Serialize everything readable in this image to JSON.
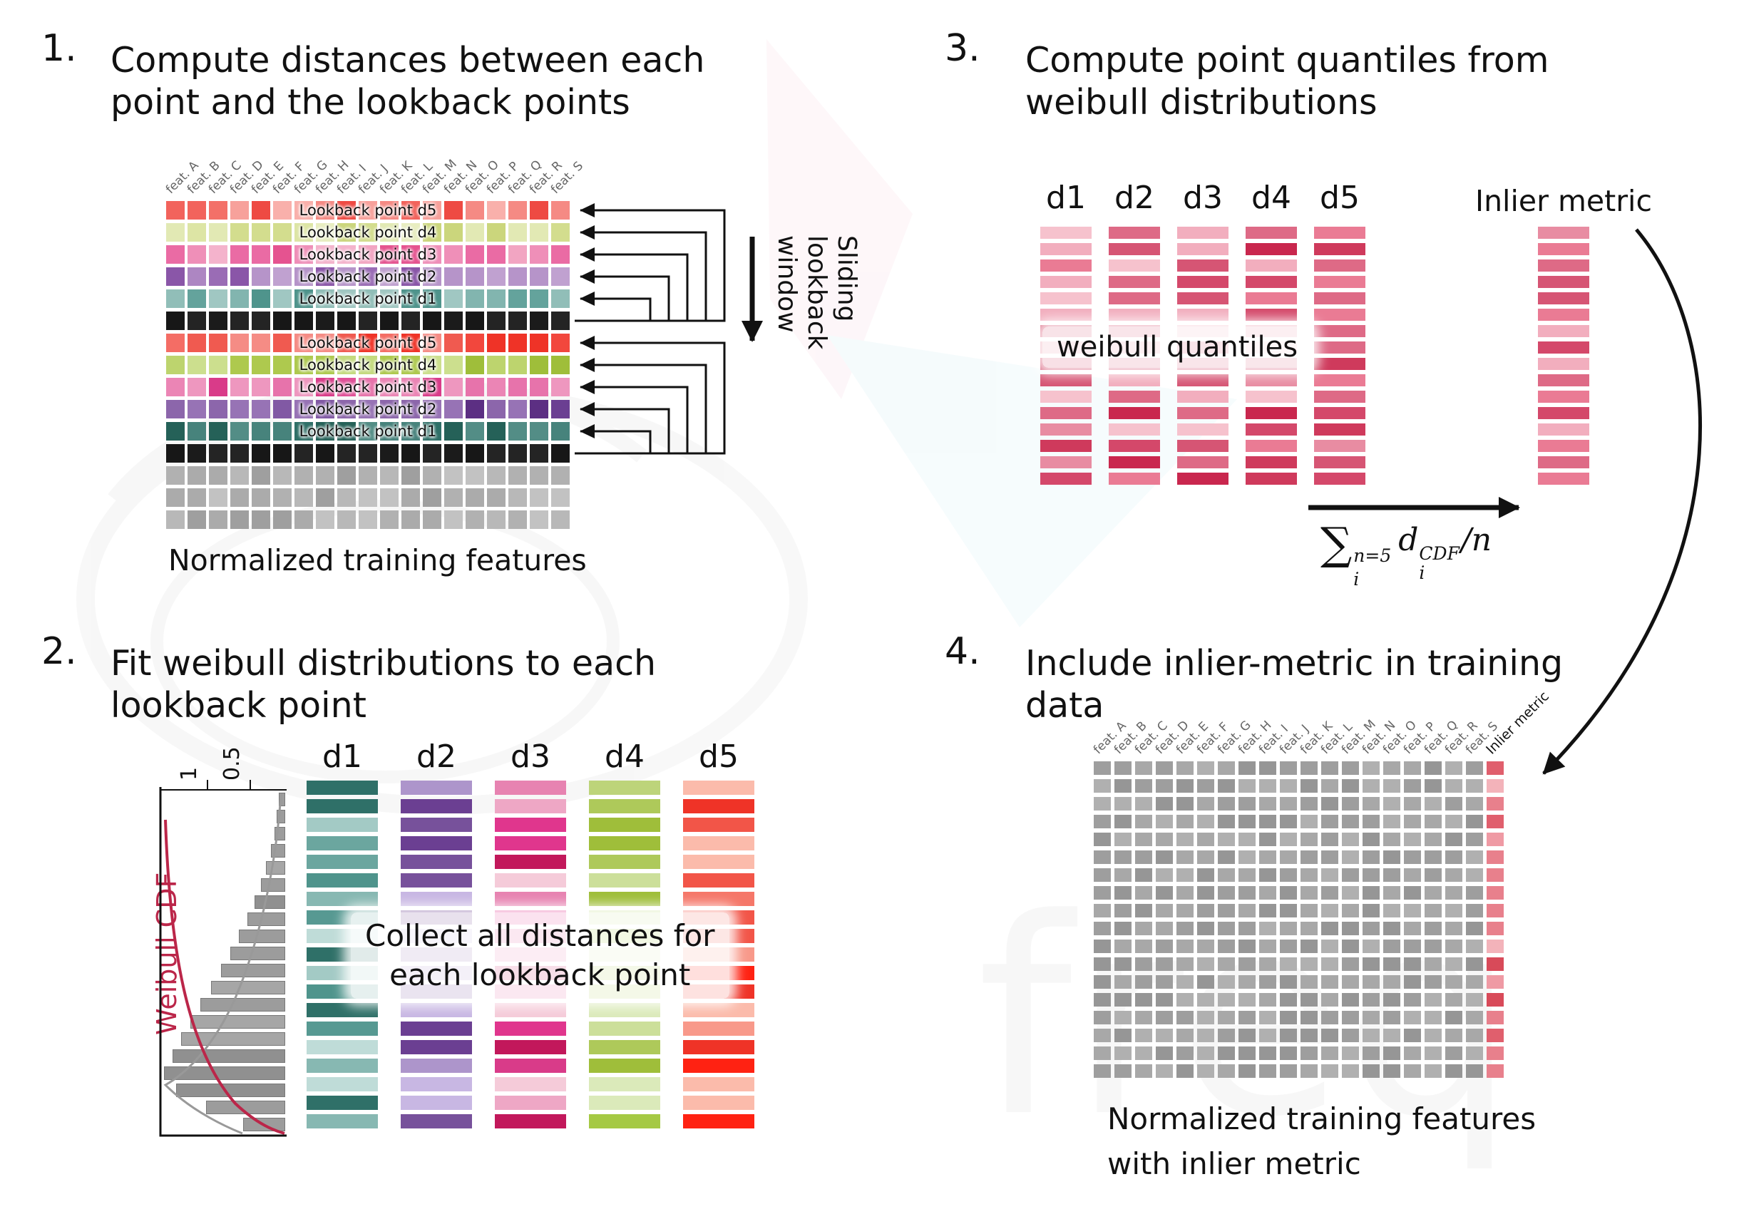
{
  "colors": {
    "ink": "#111111",
    "cdf_red": "#bb2649",
    "palettes": {
      "salmon": [
        "#f2635c",
        "#f58a84",
        "#f9b0ab",
        "#ee4a43",
        "#f7a19b",
        "#f37068"
      ],
      "paleGreen": [
        "#d3dd8e",
        "#dde5a5",
        "#e8edc0",
        "#cbd67c",
        "#e2e9b4"
      ],
      "pinkRow": [
        "#ea6ba4",
        "#ef8fb8",
        "#f4b3cc",
        "#e55390",
        "#f2a5c2"
      ],
      "purpleRow": [
        "#9a6cb5",
        "#ad86c2",
        "#c0a1d0",
        "#8a56a8",
        "#b694c9"
      ],
      "tealRow": [
        "#64a39c",
        "#82b5af",
        "#a0c7c2",
        "#4f948c",
        "#91beb8"
      ],
      "blackRow": [
        "#1b1b1b",
        "#242424",
        "#171717"
      ],
      "red2": [
        "#f2473d",
        "#f46d65",
        "#ef3327",
        "#f58c85",
        "#f05a50"
      ],
      "green2": [
        "#aec94e",
        "#bdd46e",
        "#ccdf8e",
        "#9fbe3a",
        "#c4da7e"
      ],
      "magenta2": [
        "#e04f97",
        "#e773ab",
        "#ee97bf",
        "#d93b89",
        "#eb85b5"
      ],
      "purple2": [
        "#6b3f92",
        "#8159a4",
        "#9773b5",
        "#5c2f83",
        "#8c66ab"
      ],
      "teal2": [
        "#2f7068",
        "#47837c",
        "#5f9690",
        "#256158",
        "#538d86"
      ],
      "grayRow": [
        "#ababab",
        "#b8b8b8",
        "#9f9f9f",
        "#c2c2c2",
        "#b1b1b1"
      ],
      "quantile": [
        "#c9274e",
        "#d4486a",
        "#de6a86",
        "#e88ca2",
        "#f2aebe",
        "#ea7b94",
        "#d65574",
        "#f6c2cd",
        "#cf3a5c"
      ],
      "inlierCol": [
        "#d4486a",
        "#de6a86",
        "#e88ca2",
        "#ea7b94",
        "#d65574",
        "#f2aebe"
      ],
      "tealCol": [
        "#2f7068",
        "#4f948c",
        "#6ba69f",
        "#87b8b2",
        "#a3cac5",
        "#bfdcd8",
        "#579992"
      ],
      "purpleCol": [
        "#5c2f83",
        "#77519b",
        "#9273b3",
        "#ad95cb",
        "#c8b7e3",
        "#6b3f92"
      ],
      "pinkCol": [
        "#d93b89",
        "#e05f9d",
        "#e783b1",
        "#eea7c5",
        "#f5cbd9",
        "#c2185b",
        "#e0368d"
      ],
      "greenCol": [
        "#9fbe3a",
        "#aec95a",
        "#bdd47a",
        "#ccdf9a",
        "#dbeaba",
        "#a5c944"
      ],
      "redCol": [
        "#ef3327",
        "#f25548",
        "#f57769",
        "#f8998a",
        "#fbbbab",
        "#f04335",
        "#ff2212"
      ],
      "gray4": [
        "#9e9e9e",
        "#a8a8a8",
        "#969696",
        "#b0b0b0"
      ],
      "inlier4": [
        "#e05f6d",
        "#e8808c",
        "#ef9aa4",
        "#d84a59",
        "#f3b3ba"
      ]
    }
  },
  "panel1": {
    "step": "1.",
    "title_lines": [
      "Compute distances between each",
      "point and the lookback points"
    ],
    "features": [
      "feat. A",
      "feat. B",
      "feat. C",
      "feat. D",
      "feat. E",
      "feat. F",
      "feat. G",
      "feat. H",
      "feat. I",
      "feat. J",
      "feat. K",
      "feat. L",
      "feat. M",
      "feat. N",
      "feat. O",
      "feat. P",
      "feat. Q",
      "feat. R",
      "feat. S"
    ],
    "rows": [
      {
        "palette": "salmon",
        "label": "Lookback point d5"
      },
      {
        "palette": "paleGreen",
        "label": "Lookback point d4"
      },
      {
        "palette": "pinkRow",
        "label": "Lookback point d3"
      },
      {
        "palette": "purpleRow",
        "label": "Lookback point d2"
      },
      {
        "palette": "tealRow",
        "label": "Lookback point d1"
      },
      {
        "palette": "blackRow",
        "label": ""
      },
      {
        "palette": "red2",
        "label": "Lookback point d5"
      },
      {
        "palette": "green2",
        "label": "Lookback point d4"
      },
      {
        "palette": "magenta2",
        "label": "Lookback point d3"
      },
      {
        "palette": "purple2",
        "label": "Lookback point d2"
      },
      {
        "palette": "teal2",
        "label": "Lookback point d1"
      },
      {
        "palette": "blackRow",
        "label": ""
      },
      {
        "palette": "grayRow",
        "label": ""
      },
      {
        "palette": "grayRow",
        "label": ""
      },
      {
        "palette": "grayRow",
        "label": ""
      }
    ],
    "caption": "Normalized training features",
    "sliding_lines": [
      "Sliding",
      "lookback",
      "window"
    ]
  },
  "panel2": {
    "step": "2.",
    "title_lines": [
      "Fit weibull distributions to each",
      "lookback point"
    ],
    "hist": {
      "cdf_label": "Weibull CDF",
      "tick_labels": [
        "1",
        "0.5"
      ],
      "bar_fractions": [
        0.05,
        0.07,
        0.09,
        0.12,
        0.16,
        0.2,
        0.25,
        0.31,
        0.38,
        0.45,
        0.53,
        0.61,
        0.7,
        0.78,
        0.86,
        0.93,
        1.0,
        0.9,
        0.65,
        0.35
      ]
    },
    "columns": [
      {
        "label": "d1",
        "palette": "tealCol"
      },
      {
        "label": "d2",
        "palette": "purpleCol"
      },
      {
        "label": "d3",
        "palette": "pinkCol"
      },
      {
        "label": "d4",
        "palette": "greenCol"
      },
      {
        "label": "d5",
        "palette": "redCol"
      }
    ],
    "bars_per_column": 19,
    "overlay_lines": [
      "Collect all distances for",
      "each lookback point"
    ]
  },
  "panel3": {
    "step": "3.",
    "title_lines": [
      "Compute point quantiles from",
      "weibull distributions"
    ],
    "column_labels": [
      "d1",
      "d2",
      "d3",
      "d4",
      "d5"
    ],
    "bars_per_column": 16,
    "overlay": "weibull quantiles",
    "inlier_label": "Inlier metric",
    "formula": {
      "op": "∑",
      "op_sup": "n=5",
      "op_sub": "i",
      "var": "d",
      "var_sup": "CDF",
      "var_sub": "i",
      "tail": "/n"
    }
  },
  "panel4": {
    "step": "4.",
    "title_lines": [
      "Include inlier-metric in training",
      "data"
    ],
    "features": [
      "feat. A",
      "feat. B",
      "feat. C",
      "feat. D",
      "feat. E",
      "feat. F",
      "feat. G",
      "feat. H",
      "feat. I",
      "feat. J",
      "feat. K",
      "feat. L",
      "feat. M",
      "feat. N",
      "feat. O",
      "feat. P",
      "feat. Q",
      "feat. R",
      "feat. S",
      "Inlier metric"
    ],
    "rows": 18,
    "caption_lines": [
      "Normalized training features",
      "with inlier metric"
    ]
  }
}
